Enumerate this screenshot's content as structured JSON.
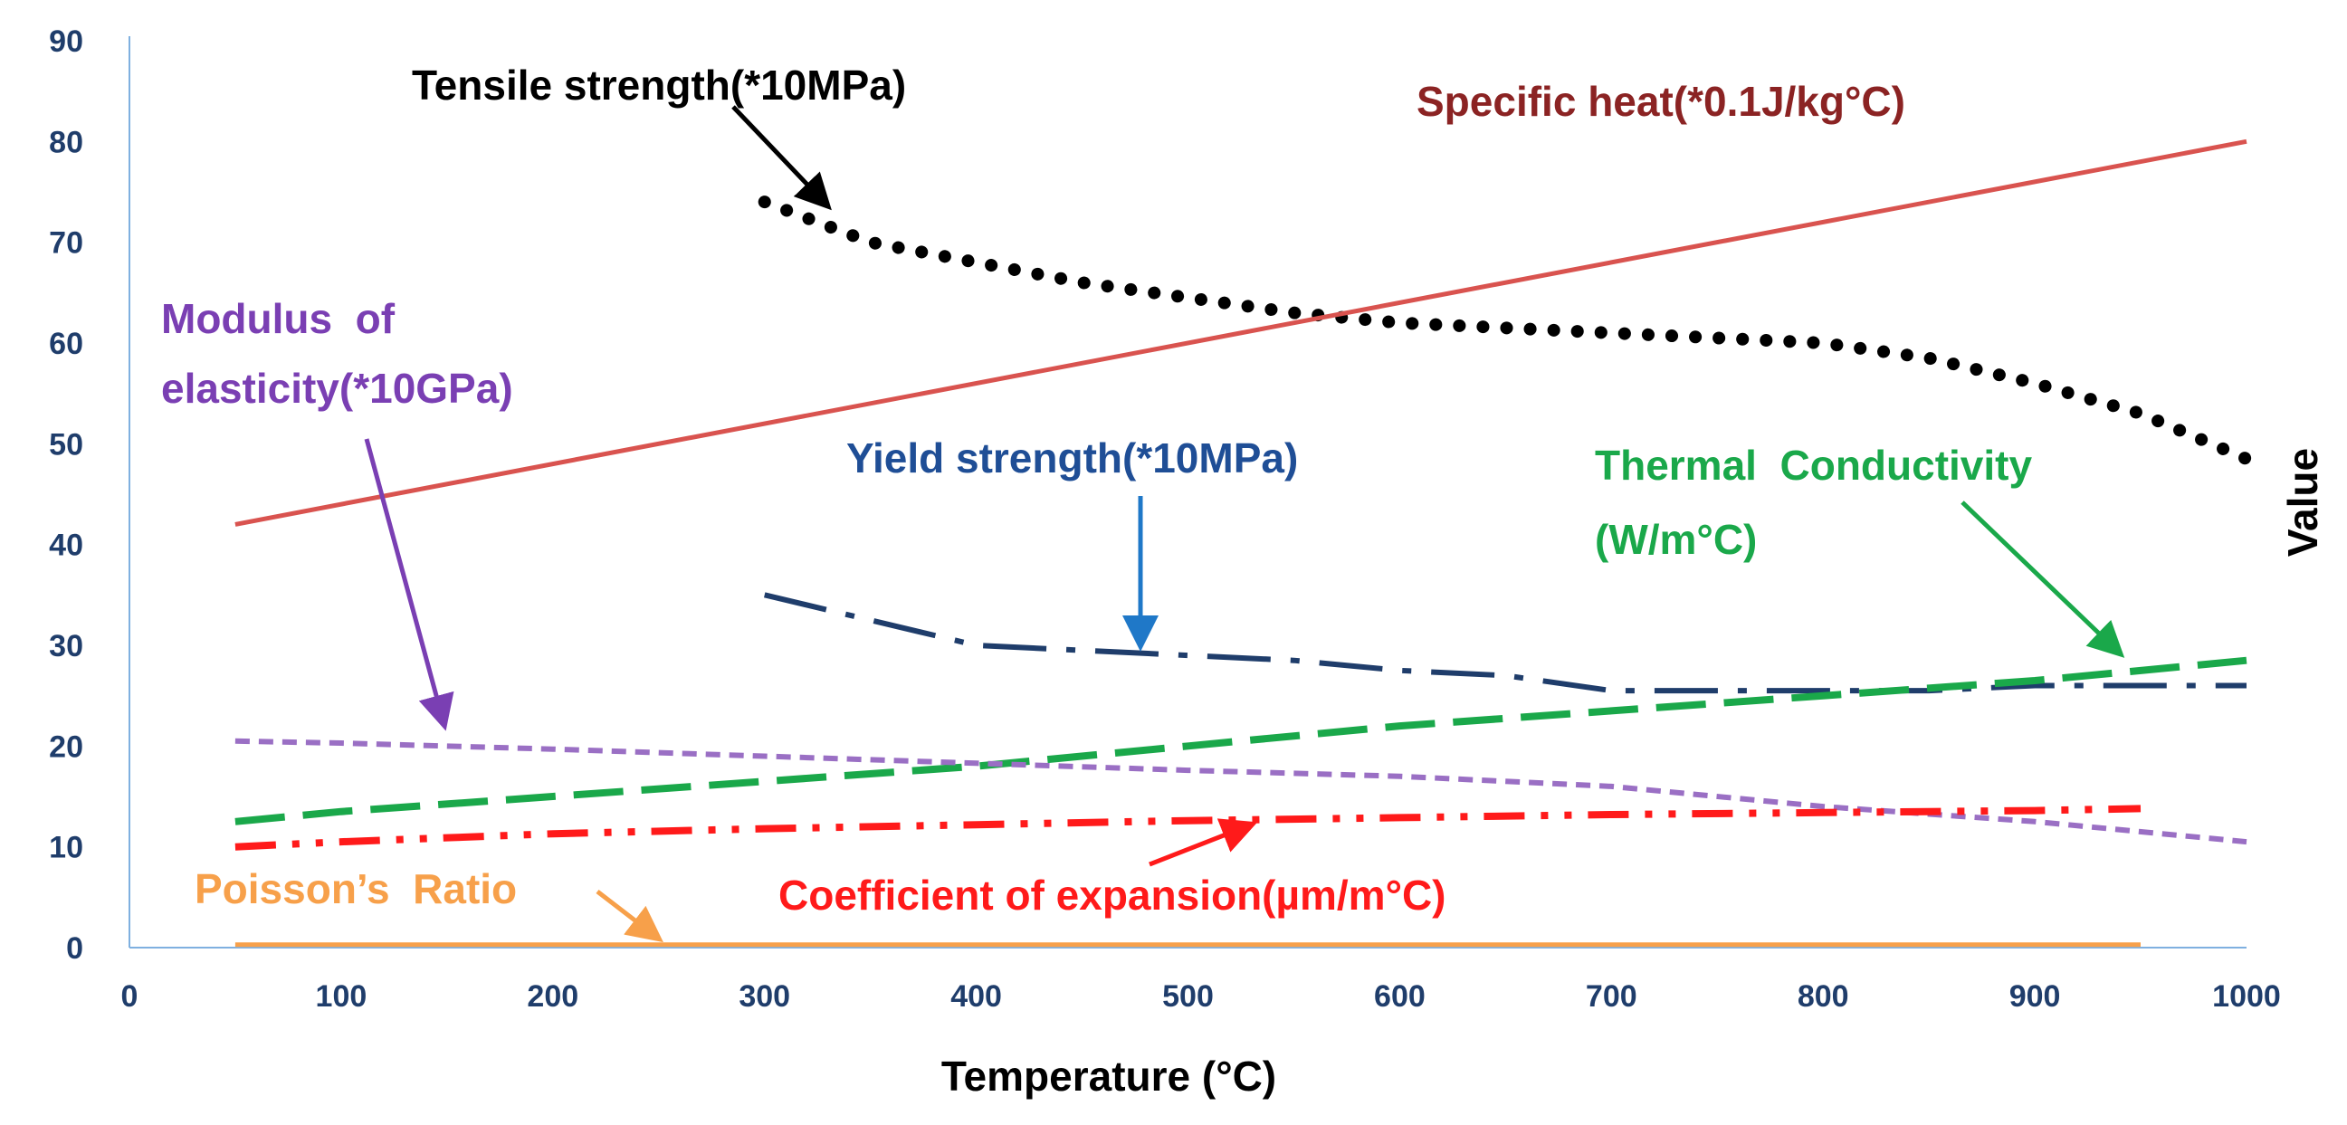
{
  "chart_data": {
    "type": "line",
    "title": "",
    "xlabel": "Temperature (°C)",
    "ylabel": "Value",
    "xlim": [
      0,
      1000
    ],
    "ylim": [
      0,
      90
    ],
    "xticks": [
      0,
      100,
      200,
      300,
      400,
      500,
      600,
      700,
      800,
      900,
      1000
    ],
    "yticks": [
      0,
      10,
      20,
      30,
      40,
      50,
      60,
      70,
      80,
      90
    ],
    "grid": false,
    "series": [
      {
        "name": "Tensile strength(*10MPa)",
        "color": "#000000",
        "style": "dotted",
        "x": [
          300,
          350,
          400,
          450,
          500,
          550,
          600,
          650,
          700,
          750,
          800,
          850,
          900,
          950,
          1000
        ],
        "y": [
          74,
          70,
          68,
          66,
          64.5,
          63,
          62,
          61.5,
          61,
          60.5,
          60,
          58.5,
          56,
          53,
          48.5
        ]
      },
      {
        "name": "Specific heat(*0.1J/kg°C)",
        "color": "#d9534f",
        "style": "solid",
        "x": [
          50,
          1000
        ],
        "y": [
          42,
          80
        ]
      },
      {
        "name": "Yield strength(*10MPa)",
        "color": "#1f3d6b",
        "style": "dashdot",
        "x": [
          300,
          350,
          400,
          450,
          500,
          550,
          600,
          650,
          700,
          750,
          800,
          850,
          900,
          950,
          1000
        ],
        "y": [
          35,
          32.5,
          30,
          29.5,
          29,
          28.5,
          27.5,
          27,
          25.5,
          25.5,
          25.5,
          25.5,
          26,
          26,
          26
        ]
      },
      {
        "name": "Thermal Conductivity (W/m°C)",
        "color": "#1aa84a",
        "style": "dashed",
        "x": [
          50,
          100,
          200,
          300,
          400,
          500,
          600,
          700,
          800,
          900,
          1000
        ],
        "y": [
          12.5,
          13.5,
          15,
          16.5,
          18,
          20,
          22,
          23.5,
          25,
          26.5,
          28.5
        ]
      },
      {
        "name": "Modulus of elasticity(*10GPa)",
        "color": "#9a6fc4",
        "style": "shortdash",
        "x": [
          50,
          100,
          200,
          300,
          400,
          500,
          600,
          700,
          800,
          900,
          1000
        ],
        "y": [
          20.5,
          20.3,
          19.7,
          19,
          18.3,
          17.6,
          17,
          16,
          14,
          12.5,
          10.5
        ]
      },
      {
        "name": "Coefficient of expansion(µm/m°C)",
        "color": "#ff1a1a",
        "style": "dashdotdot",
        "x": [
          50,
          100,
          200,
          300,
          400,
          500,
          600,
          700,
          800,
          900,
          950
        ],
        "y": [
          10,
          10.5,
          11.3,
          11.8,
          12.2,
          12.6,
          12.9,
          13.2,
          13.4,
          13.6,
          13.8
        ]
      },
      {
        "name": "Poisson’s Ratio",
        "color": "#f7a04a",
        "style": "solid",
        "x": [
          50,
          950
        ],
        "y": [
          0.3,
          0.3
        ]
      }
    ],
    "annotations": [
      {
        "text": "Tensile strength(*10MPa)",
        "color": "#000000",
        "arrow_color": "#000000"
      },
      {
        "text": "Specific heat(*0.1J/kg°C)",
        "color": "#8b2323",
        "arrow_color": ""
      },
      {
        "text": "Modulus  of",
        "color": "#7a3fb3",
        "arrow_color": "#7a3fb3"
      },
      {
        "text": "elasticity(*10GPa)",
        "color": "#7a3fb3",
        "arrow_color": ""
      },
      {
        "text": "Yield strength(*10MPa)",
        "color": "#1f4e96",
        "arrow_color": "#1f78c8"
      },
      {
        "text": "Thermal  Conductivity",
        "color": "#1aa84a",
        "arrow_color": "#1aa84a"
      },
      {
        "text": "(W/m°C)",
        "color": "#1aa84a",
        "arrow_color": ""
      },
      {
        "text": "Poisson’s  Ratio",
        "color": "#f7a04a",
        "arrow_color": "#f7a04a"
      },
      {
        "text": "Coefficient of expansion(µm/m°C)",
        "color": "#ff1a1a",
        "arrow_color": "#ff1a1a"
      }
    ]
  }
}
